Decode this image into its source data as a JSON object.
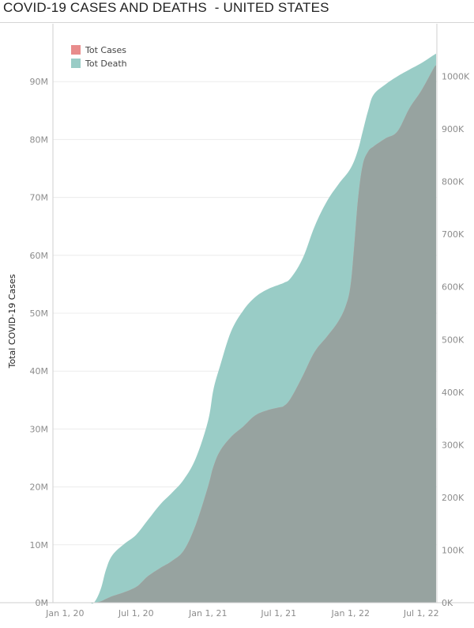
{
  "title": "COVID-19 CASES AND DEATHS  - UNITED STATES",
  "colors": {
    "tot_cases": "#e88c8c",
    "tot_death": "#99ccc6",
    "overlap": "#97a3a0",
    "grid": "#ececec",
    "axis": "#cfcfcf"
  },
  "chart_data": {
    "type": "area",
    "title": "COVID-19 CASES AND DEATHS  - UNITED STATES",
    "xlabel": "",
    "ylabel": "Total COVID-19 Cases",
    "y2label": "",
    "x_ticks": [
      {
        "label": "Jan 1, 20",
        "value": "2020-01-01"
      },
      {
        "label": "Jul 1, 20",
        "value": "2020-07-01"
      },
      {
        "label": "Jan 1, 21",
        "value": "2021-01-01"
      },
      {
        "label": "Jul 1, 21",
        "value": "2021-07-01"
      },
      {
        "label": "Jan 1, 22",
        "value": "2022-01-01"
      },
      {
        "label": "Jul 1, 22",
        "value": "2022-07-01"
      }
    ],
    "xlim": [
      "2019-12-01",
      "2022-08-10"
    ],
    "ylim": [
      0,
      100000000
    ],
    "y2lim": [
      0,
      1100000
    ],
    "y_ticks": [
      {
        "label": "0M",
        "value": 0
      },
      {
        "label": "10M",
        "value": 10000000
      },
      {
        "label": "20M",
        "value": 20000000
      },
      {
        "label": "30M",
        "value": 30000000
      },
      {
        "label": "40M",
        "value": 40000000
      },
      {
        "label": "50M",
        "value": 50000000
      },
      {
        "label": "60M",
        "value": 60000000
      },
      {
        "label": "70M",
        "value": 70000000
      },
      {
        "label": "80M",
        "value": 80000000
      },
      {
        "label": "90M",
        "value": 90000000
      }
    ],
    "y2_ticks": [
      {
        "label": "0K",
        "value": 0
      },
      {
        "label": "100K",
        "value": 100000
      },
      {
        "label": "200K",
        "value": 200000
      },
      {
        "label": "300K",
        "value": 300000
      },
      {
        "label": "400K",
        "value": 400000
      },
      {
        "label": "500K",
        "value": 500000
      },
      {
        "label": "600K",
        "value": 600000
      },
      {
        "label": "700K",
        "value": 700000
      },
      {
        "label": "800K",
        "value": 800000
      },
      {
        "label": "900K",
        "value": 900000
      },
      {
        "label": "1000K",
        "value": 1000000
      }
    ],
    "grid": true,
    "legend_position": "top-left",
    "series": [
      {
        "name": "Tot Cases",
        "axis": "left",
        "color": "#e88c8c",
        "points": [
          [
            "2020-01-22",
            0
          ],
          [
            "2020-03-01",
            100
          ],
          [
            "2020-03-15",
            3500
          ],
          [
            "2020-04-01",
            200000
          ],
          [
            "2020-04-15",
            640000
          ],
          [
            "2020-05-01",
            1100000
          ],
          [
            "2020-06-01",
            1800000
          ],
          [
            "2020-07-01",
            2700000
          ],
          [
            "2020-07-15",
            3500000
          ],
          [
            "2020-08-01",
            4600000
          ],
          [
            "2020-09-01",
            6000000
          ],
          [
            "2020-10-01",
            7200000
          ],
          [
            "2020-11-01",
            9100000
          ],
          [
            "2020-12-01",
            13500000
          ],
          [
            "2021-01-01",
            20000000
          ],
          [
            "2021-01-15",
            23500000
          ],
          [
            "2021-02-01",
            26200000
          ],
          [
            "2021-03-01",
            28600000
          ],
          [
            "2021-04-01",
            30400000
          ],
          [
            "2021-05-01",
            32300000
          ],
          [
            "2021-06-01",
            33200000
          ],
          [
            "2021-07-01",
            33700000
          ],
          [
            "2021-07-15",
            34000000
          ],
          [
            "2021-08-01",
            35300000
          ],
          [
            "2021-09-01",
            39200000
          ],
          [
            "2021-10-01",
            43300000
          ],
          [
            "2021-11-01",
            45900000
          ],
          [
            "2021-12-01",
            48600000
          ],
          [
            "2021-12-20",
            51300000
          ],
          [
            "2022-01-01",
            54700000
          ],
          [
            "2022-01-10",
            61200000
          ],
          [
            "2022-01-20",
            69500000
          ],
          [
            "2022-02-01",
            75500000
          ],
          [
            "2022-02-15",
            77900000
          ],
          [
            "2022-03-01",
            78800000
          ],
          [
            "2022-04-01",
            80200000
          ],
          [
            "2022-05-01",
            81400000
          ],
          [
            "2022-06-01",
            85400000
          ],
          [
            "2022-07-01",
            88400000
          ],
          [
            "2022-08-01",
            92200000
          ],
          [
            "2022-08-08",
            92800000
          ]
        ]
      },
      {
        "name": "Tot Death",
        "axis": "right",
        "color": "#99ccc6",
        "points": [
          [
            "2020-01-22",
            0
          ],
          [
            "2020-03-01",
            0
          ],
          [
            "2020-03-15",
            70
          ],
          [
            "2020-04-01",
            25000
          ],
          [
            "2020-04-15",
            63000
          ],
          [
            "2020-05-01",
            90000
          ],
          [
            "2020-06-01",
            112000
          ],
          [
            "2020-07-01",
            129000
          ],
          [
            "2020-08-01",
            158000
          ],
          [
            "2020-09-01",
            187000
          ],
          [
            "2020-10-01",
            209000
          ],
          [
            "2020-11-01",
            235000
          ],
          [
            "2020-12-01",
            275000
          ],
          [
            "2021-01-01",
            345000
          ],
          [
            "2021-01-15",
            405000
          ],
          [
            "2021-02-01",
            450000
          ],
          [
            "2021-03-01",
            515000
          ],
          [
            "2021-04-01",
            555000
          ],
          [
            "2021-05-01",
            580000
          ],
          [
            "2021-06-01",
            595000
          ],
          [
            "2021-07-01",
            604000
          ],
          [
            "2021-07-15",
            608000
          ],
          [
            "2021-08-01",
            617000
          ],
          [
            "2021-09-01",
            655000
          ],
          [
            "2021-10-01",
            715000
          ],
          [
            "2021-11-01",
            762000
          ],
          [
            "2021-12-01",
            795000
          ],
          [
            "2022-01-01",
            825000
          ],
          [
            "2022-01-20",
            860000
          ],
          [
            "2022-02-01",
            895000
          ],
          [
            "2022-02-15",
            935000
          ],
          [
            "2022-03-01",
            965000
          ],
          [
            "2022-04-01",
            985000
          ],
          [
            "2022-05-01",
            1000000
          ],
          [
            "2022-06-01",
            1013000
          ],
          [
            "2022-07-01",
            1025000
          ],
          [
            "2022-08-01",
            1040000
          ],
          [
            "2022-08-08",
            1043000
          ]
        ]
      }
    ]
  }
}
